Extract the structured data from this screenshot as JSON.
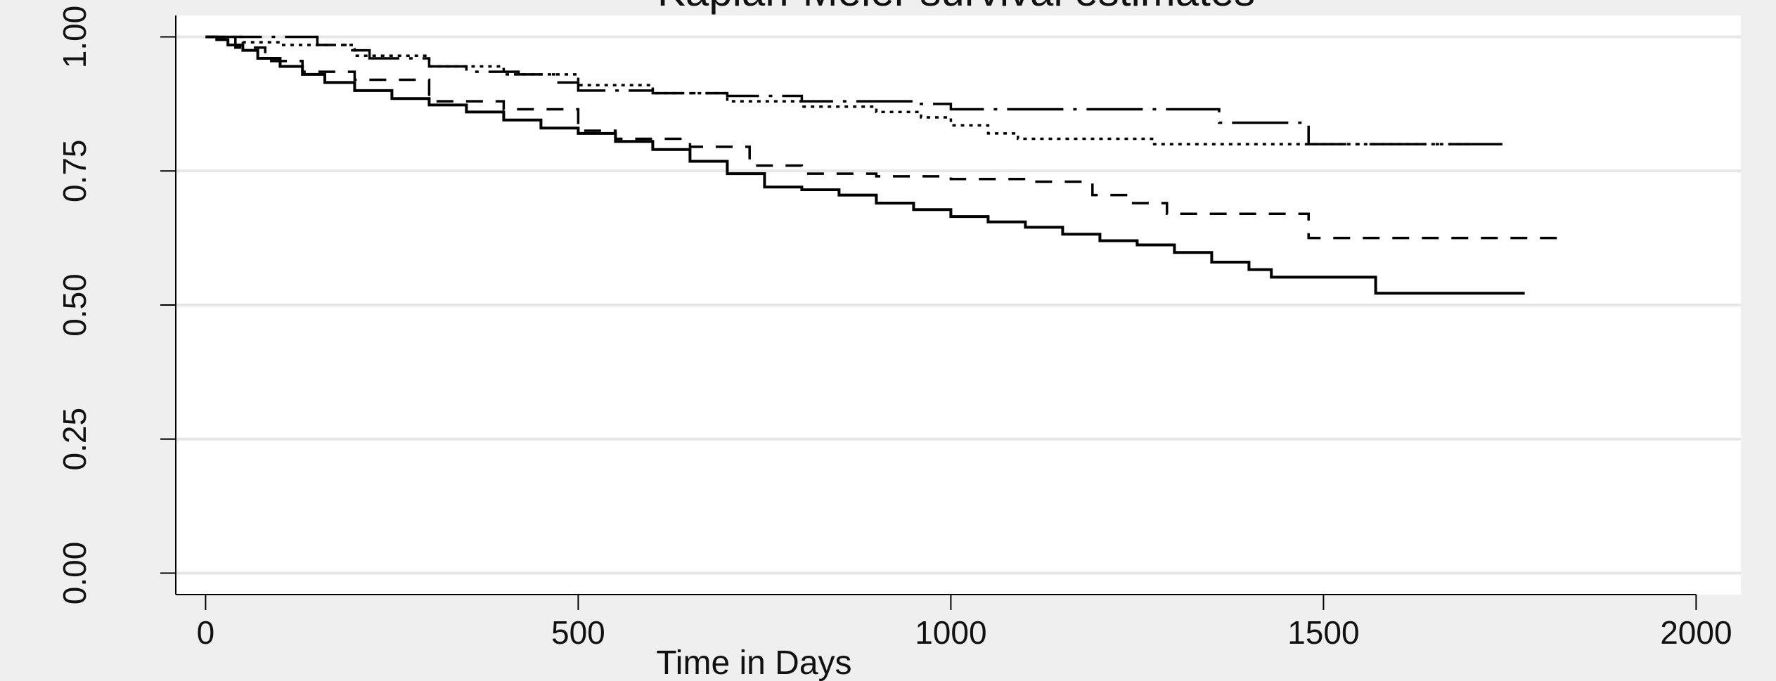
{
  "chart_data": {
    "type": "line",
    "title": "Kaplan-Meier survival estimates",
    "xlabel": "Time in Days",
    "ylabel": "",
    "xlim": [
      -40,
      2060
    ],
    "ylim": [
      -0.04,
      1.04
    ],
    "x_ticks": [
      0,
      500,
      1000,
      1500,
      2000
    ],
    "x_tick_labels": [
      "0",
      "500",
      "1000",
      "1500",
      "2000"
    ],
    "y_ticks": [
      0,
      0.25,
      0.5,
      0.75,
      1.0
    ],
    "y_tick_labels": [
      "0.00",
      "0.25",
      "0.50",
      "0.75",
      "1.00"
    ],
    "grid": "horizontal",
    "legend": "none",
    "series": [
      {
        "style": "solid",
        "points": [
          [
            0,
            1.0
          ],
          [
            15,
            0.995
          ],
          [
            30,
            0.985
          ],
          [
            50,
            0.975
          ],
          [
            70,
            0.96
          ],
          [
            100,
            0.945
          ],
          [
            130,
            0.93
          ],
          [
            160,
            0.915
          ],
          [
            200,
            0.9
          ],
          [
            250,
            0.885
          ],
          [
            300,
            0.873
          ],
          [
            350,
            0.86
          ],
          [
            400,
            0.845
          ],
          [
            450,
            0.83
          ],
          [
            500,
            0.82
          ],
          [
            550,
            0.805
          ],
          [
            600,
            0.79
          ],
          [
            650,
            0.768
          ],
          [
            700,
            0.745
          ],
          [
            750,
            0.72
          ],
          [
            800,
            0.715
          ],
          [
            850,
            0.705
          ],
          [
            900,
            0.69
          ],
          [
            950,
            0.678
          ],
          [
            1000,
            0.665
          ],
          [
            1050,
            0.655
          ],
          [
            1100,
            0.645
          ],
          [
            1150,
            0.632
          ],
          [
            1200,
            0.62
          ],
          [
            1250,
            0.612
          ],
          [
            1300,
            0.598
          ],
          [
            1350,
            0.58
          ],
          [
            1400,
            0.566
          ],
          [
            1430,
            0.552
          ],
          [
            1570,
            0.552
          ],
          [
            1570,
            0.522
          ],
          [
            1770,
            0.522
          ]
        ]
      },
      {
        "style": "dash",
        "points": [
          [
            0,
            1.0
          ],
          [
            40,
            0.98
          ],
          [
            80,
            0.955
          ],
          [
            130,
            0.935
          ],
          [
            200,
            0.92
          ],
          [
            300,
            0.88
          ],
          [
            400,
            0.865
          ],
          [
            500,
            0.825
          ],
          [
            550,
            0.81
          ],
          [
            650,
            0.795
          ],
          [
            730,
            0.76
          ],
          [
            800,
            0.745
          ],
          [
            900,
            0.74
          ],
          [
            1000,
            0.735
          ],
          [
            1100,
            0.73
          ],
          [
            1190,
            0.705
          ],
          [
            1240,
            0.69
          ],
          [
            1290,
            0.67
          ],
          [
            1480,
            0.67
          ],
          [
            1480,
            0.625
          ],
          [
            1820,
            0.625
          ]
        ]
      },
      {
        "style": "dot",
        "points": [
          [
            0,
            1.0
          ],
          [
            50,
            0.99
          ],
          [
            100,
            0.985
          ],
          [
            200,
            0.965
          ],
          [
            300,
            0.945
          ],
          [
            400,
            0.93
          ],
          [
            500,
            0.91
          ],
          [
            600,
            0.895
          ],
          [
            700,
            0.88
          ],
          [
            800,
            0.87
          ],
          [
            900,
            0.86
          ],
          [
            960,
            0.85
          ],
          [
            1000,
            0.835
          ],
          [
            1050,
            0.82
          ],
          [
            1090,
            0.81
          ],
          [
            1270,
            0.8
          ],
          [
            1700,
            0.8
          ]
        ]
      },
      {
        "style": "longdash-dot",
        "points": [
          [
            0,
            1.0
          ],
          [
            100,
            1.0
          ],
          [
            150,
            0.985
          ],
          [
            190,
            0.975
          ],
          [
            220,
            0.96
          ],
          [
            300,
            0.945
          ],
          [
            350,
            0.935
          ],
          [
            420,
            0.93
          ],
          [
            470,
            0.915
          ],
          [
            500,
            0.9
          ],
          [
            600,
            0.895
          ],
          [
            700,
            0.89
          ],
          [
            800,
            0.88
          ],
          [
            950,
            0.875
          ],
          [
            1000,
            0.865
          ],
          [
            1360,
            0.86
          ],
          [
            1360,
            0.84
          ],
          [
            1480,
            0.84
          ],
          [
            1480,
            0.8
          ],
          [
            1740,
            0.8
          ]
        ]
      }
    ]
  }
}
